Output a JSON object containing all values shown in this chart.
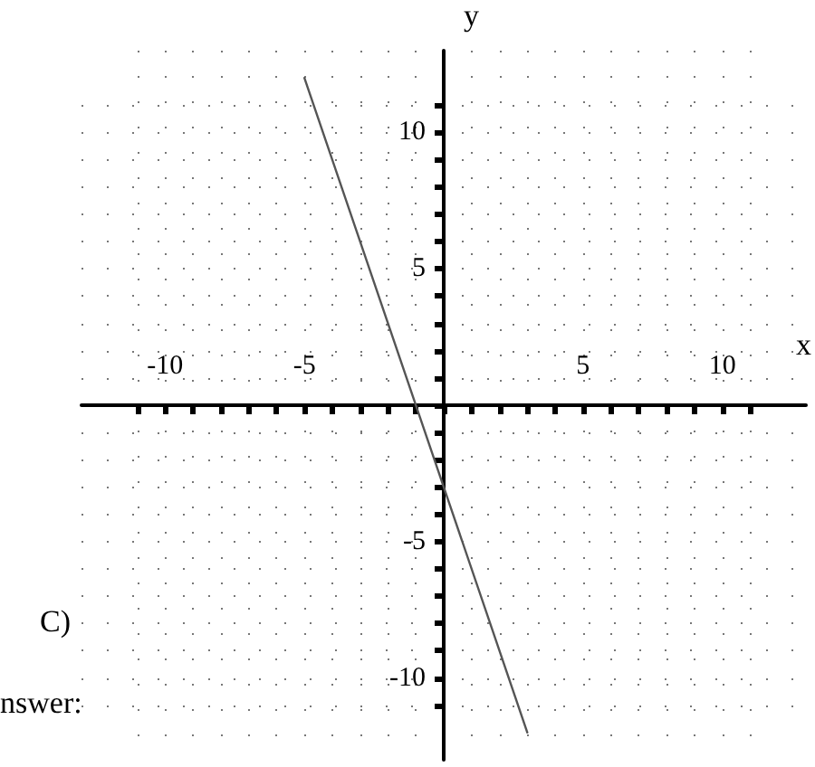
{
  "chart_data": {
    "type": "line",
    "xlabel": "x",
    "ylabel": "y",
    "annotations": [
      "C)",
      "nswer:"
    ],
    "x": [
      -5,
      3
    ],
    "series": [
      {
        "color": "#555555",
        "values": [
          12,
          -12
        ]
      }
    ],
    "xlim": [
      -13,
      13
    ],
    "ylim": [
      -13,
      13
    ],
    "xticks": [
      {
        "value": -11,
        "label": null
      },
      -10,
      {
        "value": -9,
        "label": null
      },
      {
        "value": -8,
        "label": null
      },
      {
        "value": -7,
        "label": null
      },
      {
        "value": -6,
        "label": null
      },
      -5,
      {
        "value": -4,
        "label": null
      },
      {
        "value": -3,
        "label": null
      },
      {
        "value": -2,
        "label": null
      },
      {
        "value": -1,
        "label": null
      },
      {
        "value": 0,
        "label": null
      },
      {
        "value": 1,
        "label": null
      },
      {
        "value": 2,
        "label": null
      },
      {
        "value": 3,
        "label": null
      },
      {
        "value": 4,
        "label": null
      },
      5,
      {
        "value": 6,
        "label": null
      },
      {
        "value": 7,
        "label": null
      },
      {
        "value": 8,
        "label": null
      },
      {
        "value": 9,
        "label": null
      },
      10,
      {
        "value": 11,
        "label": null
      }
    ],
    "yticks": [
      {
        "value": -11,
        "label": null
      },
      -10,
      {
        "value": -9,
        "label": null
      },
      {
        "value": -8,
        "label": null
      },
      {
        "value": -7,
        "label": null
      },
      {
        "value": -6,
        "label": null
      },
      -5,
      {
        "value": -4,
        "label": null
      },
      {
        "value": -3,
        "label": null
      },
      {
        "value": -2,
        "label": null
      },
      {
        "value": -1,
        "label": null
      },
      {
        "value": 0,
        "label": null
      },
      {
        "value": 1,
        "label": null
      },
      {
        "value": 2,
        "label": null
      },
      {
        "value": 3,
        "label": null
      },
      {
        "value": 4,
        "label": null
      },
      5,
      {
        "value": 6,
        "label": null
      },
      {
        "value": 7,
        "label": null
      },
      {
        "value": 8,
        "label": null
      },
      {
        "value": 9,
        "label": null
      },
      10,
      {
        "value": 11,
        "label": null
      }
    ],
    "grid": true,
    "marker": "none",
    "line_style": "solid"
  }
}
